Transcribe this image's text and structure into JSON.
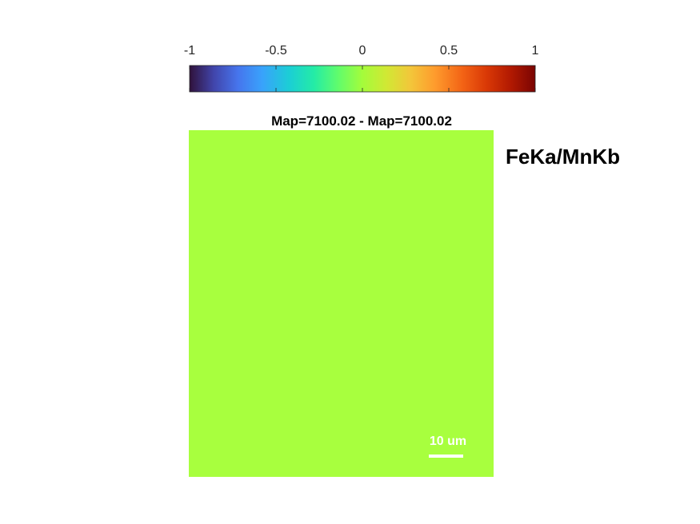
{
  "chart_data": {
    "type": "heatmap",
    "title": "Map=7100.02 - Map=7100.02",
    "side_label": "FeKa/MnKb",
    "colormap": "turbo",
    "colorbar": {
      "location": "top",
      "clim": [
        -1,
        1
      ],
      "ticks": [
        -1,
        -0.5,
        0,
        0.5,
        1
      ],
      "tick_labels": [
        "-1",
        "-0.5",
        "0",
        "0.5",
        "1"
      ]
    },
    "map_value": 0,
    "map_color": "#a8ff3e",
    "scale_bar": {
      "label": "10 um",
      "color": "#ffffff"
    },
    "grid": false
  }
}
